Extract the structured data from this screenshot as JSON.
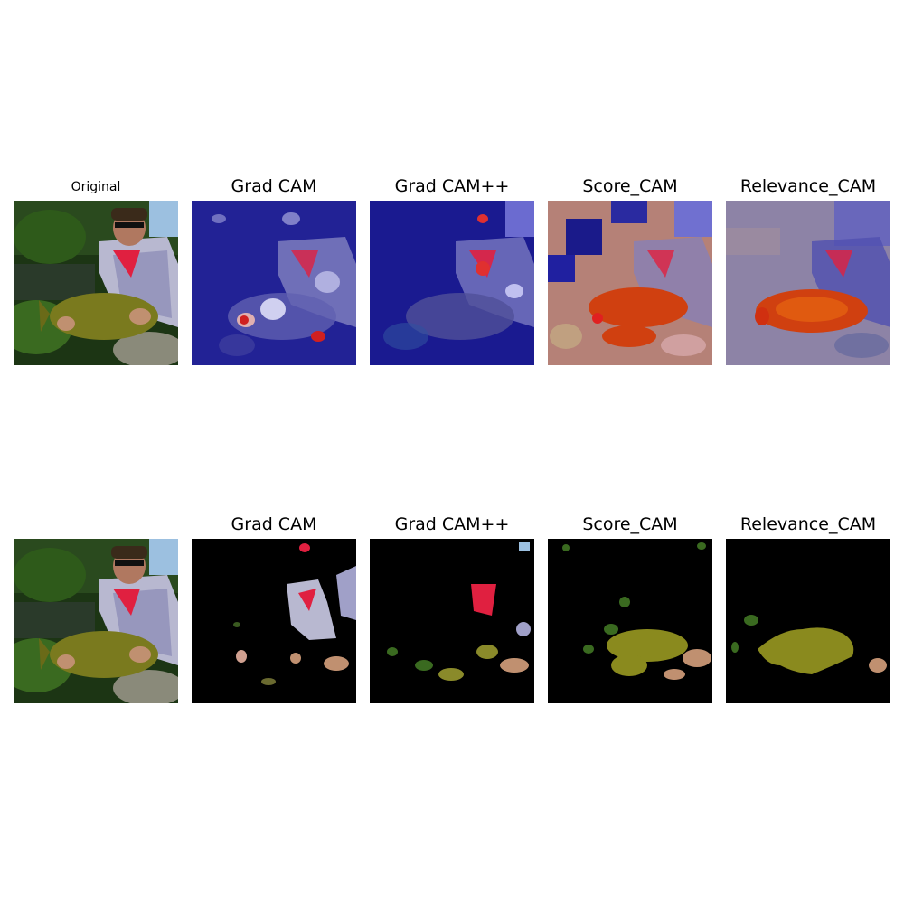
{
  "row1": {
    "titles": [
      "Original",
      "Grad CAM",
      "Grad CAM++",
      "Score_CAM",
      "Relevance_CAM"
    ]
  },
  "row2": {
    "titles": [
      "Grad CAM",
      "Grad CAM++",
      "Score_CAM",
      "Relevance_CAM"
    ]
  },
  "colors": {
    "background": "#ffffff",
    "mask_background": "#000000",
    "heat_low": "#1e1ea0",
    "heat_high": "#e0280a",
    "fish": "#7a7a1e",
    "shirt_red": "#e02040",
    "foliage": "#1e4a14"
  }
}
